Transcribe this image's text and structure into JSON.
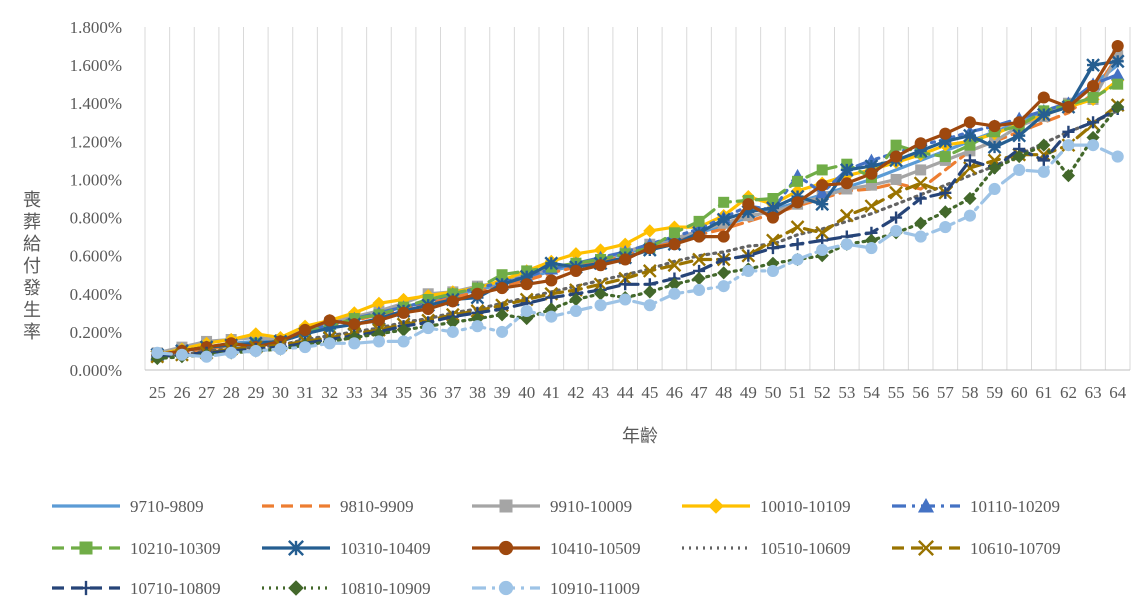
{
  "chart_data": {
    "type": "line",
    "title": "",
    "xlabel": "年齡",
    "ylabel": "喪葬給付發生率",
    "ylim": [
      0,
      0.018
    ],
    "ytick_values": [
      0,
      0.002,
      0.004,
      0.006,
      0.008,
      0.01,
      0.012,
      0.014,
      0.016,
      0.018
    ],
    "ytick_labels": [
      "0.000%",
      "0.200%",
      "0.400%",
      "0.600%",
      "0.800%",
      "1.000%",
      "1.200%",
      "1.400%",
      "1.600%",
      "1.800%"
    ],
    "grid": "vertical",
    "legend_position": "bottom",
    "categories": [
      "25",
      "26",
      "27",
      "28",
      "29",
      "30",
      "31",
      "32",
      "33",
      "34",
      "35",
      "36",
      "37",
      "38",
      "39",
      "40",
      "41",
      "42",
      "43",
      "44",
      "45",
      "46",
      "47",
      "48",
      "49",
      "50",
      "51",
      "52",
      "53",
      "54",
      "55",
      "56",
      "57",
      "58",
      "59",
      "60",
      "61",
      "62",
      "63",
      "64"
    ],
    "series": [
      {
        "name": "9710-9809",
        "color": "#5B9BD5",
        "dash": "solid",
        "marker": "none",
        "values": [
          0.0008,
          0.001,
          0.0012,
          0.0014,
          0.0015,
          0.0016,
          0.002,
          0.0024,
          0.0027,
          0.003,
          0.0033,
          0.0036,
          0.0039,
          0.0042,
          0.0045,
          0.0048,
          0.0052,
          0.0055,
          0.0058,
          0.0061,
          0.0065,
          0.0068,
          0.0072,
          0.0076,
          0.008,
          0.0084,
          0.0088,
          0.0092,
          0.0096,
          0.01,
          0.0105,
          0.011,
          0.0115,
          0.012,
          0.0125,
          0.013,
          0.0135,
          0.014,
          0.015,
          0.016
        ]
      },
      {
        "name": "9810-9909",
        "color": "#ED7D31",
        "dash": "dash",
        "marker": "none",
        "values": [
          0.0007,
          0.0009,
          0.0011,
          0.0013,
          0.0014,
          0.0016,
          0.0019,
          0.0023,
          0.0026,
          0.0029,
          0.0032,
          0.0035,
          0.0038,
          0.0041,
          0.0044,
          0.0047,
          0.0051,
          0.0054,
          0.0057,
          0.006,
          0.0064,
          0.0067,
          0.0071,
          0.0074,
          0.0078,
          0.0082,
          0.0086,
          0.009,
          0.0094,
          0.0095,
          0.0098,
          0.0095,
          0.0105,
          0.0115,
          0.012,
          0.0125,
          0.013,
          0.0135,
          0.0145,
          0.0165
        ]
      },
      {
        "name": "9910-10009",
        "color": "#A5A5A5",
        "dash": "solid",
        "marker": "square",
        "values": [
          0.0009,
          0.0012,
          0.0015,
          0.0016,
          0.0017,
          0.0016,
          0.0021,
          0.0025,
          0.0028,
          0.0031,
          0.0035,
          0.004,
          0.0041,
          0.0044,
          0.0046,
          0.005,
          0.0053,
          0.0056,
          0.0058,
          0.0062,
          0.0066,
          0.0069,
          0.0073,
          0.0077,
          0.0081,
          0.0083,
          0.0087,
          0.0091,
          0.0095,
          0.0097,
          0.01,
          0.0105,
          0.011,
          0.0115,
          0.012,
          0.0128,
          0.0133,
          0.014,
          0.0142,
          0.0165
        ]
      },
      {
        "name": "10010-10109",
        "color": "#FFC000",
        "dash": "solid",
        "marker": "diamond",
        "values": [
          0.0008,
          0.0011,
          0.0014,
          0.0016,
          0.0019,
          0.0017,
          0.0023,
          0.0026,
          0.003,
          0.0035,
          0.0037,
          0.0039,
          0.0041,
          0.0043,
          0.0047,
          0.0052,
          0.0057,
          0.0061,
          0.0063,
          0.0066,
          0.0073,
          0.0075,
          0.0075,
          0.0081,
          0.0091,
          0.0087,
          0.0094,
          0.0098,
          0.0102,
          0.0105,
          0.0109,
          0.0113,
          0.0118,
          0.012,
          0.0124,
          0.0129,
          0.0134,
          0.0138,
          0.0142,
          0.0152
        ]
      },
      {
        "name": "10110-10209",
        "color": "#4472C4",
        "dash": "dash-dot",
        "marker": "triangle",
        "values": [
          0.0008,
          0.001,
          0.0012,
          0.0013,
          0.0014,
          0.0015,
          0.002,
          0.0024,
          0.0027,
          0.003,
          0.0033,
          0.0036,
          0.004,
          0.0043,
          0.0046,
          0.0049,
          0.0053,
          0.0056,
          0.0059,
          0.0062,
          0.0066,
          0.007,
          0.0074,
          0.008,
          0.0086,
          0.0084,
          0.0102,
          0.0093,
          0.0105,
          0.011,
          0.0114,
          0.0118,
          0.0121,
          0.0125,
          0.0128,
          0.0132,
          0.0136,
          0.014,
          0.015,
          0.0155
        ]
      },
      {
        "name": "10210-10309",
        "color": "#70AD47",
        "dash": "dash",
        "marker": "square",
        "values": [
          0.0007,
          0.001,
          0.0012,
          0.0013,
          0.0014,
          0.0015,
          0.002,
          0.0023,
          0.0027,
          0.0029,
          0.0033,
          0.0037,
          0.004,
          0.0043,
          0.005,
          0.0052,
          0.0054,
          0.0056,
          0.0058,
          0.0061,
          0.0064,
          0.0072,
          0.0078,
          0.0088,
          0.0089,
          0.009,
          0.0099,
          0.0105,
          0.0108,
          0.0101,
          0.0118,
          0.0114,
          0.0112,
          0.0118,
          0.0125,
          0.0128,
          0.0136,
          0.0139,
          0.0143,
          0.015
        ]
      },
      {
        "name": "10310-10409",
        "color": "#255E91",
        "dash": "solid",
        "marker": "star",
        "values": [
          0.0008,
          0.001,
          0.0012,
          0.0013,
          0.0014,
          0.0015,
          0.0019,
          0.0022,
          0.0024,
          0.0027,
          0.0031,
          0.0034,
          0.0037,
          0.0038,
          0.0045,
          0.0049,
          0.0056,
          0.0054,
          0.0056,
          0.0059,
          0.0063,
          0.0066,
          0.0072,
          0.0079,
          0.0083,
          0.0085,
          0.0091,
          0.0087,
          0.0105,
          0.0107,
          0.011,
          0.0115,
          0.012,
          0.0123,
          0.0117,
          0.0123,
          0.0134,
          0.0138,
          0.016,
          0.0162
        ]
      },
      {
        "name": "10410-10509",
        "color": "#9E480E",
        "dash": "solid",
        "marker": "circle",
        "values": [
          0.0008,
          0.001,
          0.0012,
          0.0014,
          0.0012,
          0.0015,
          0.0021,
          0.0026,
          0.0024,
          0.0026,
          0.003,
          0.0032,
          0.0036,
          0.004,
          0.0043,
          0.0045,
          0.0047,
          0.0052,
          0.0055,
          0.0058,
          0.0064,
          0.0066,
          0.007,
          0.007,
          0.0087,
          0.008,
          0.0088,
          0.0097,
          0.0098,
          0.0103,
          0.0112,
          0.0119,
          0.0124,
          0.013,
          0.0128,
          0.013,
          0.0143,
          0.0138,
          0.0149,
          0.017
        ]
      },
      {
        "name": "10510-10609",
        "color": "#636363",
        "dash": "dot",
        "marker": "none",
        "values": [
          0.0007,
          0.0008,
          0.001,
          0.0011,
          0.0012,
          0.0013,
          0.0016,
          0.0018,
          0.002,
          0.0022,
          0.0025,
          0.0027,
          0.003,
          0.0032,
          0.0035,
          0.0038,
          0.0041,
          0.0044,
          0.0047,
          0.005,
          0.0053,
          0.0057,
          0.006,
          0.0062,
          0.0065,
          0.0066,
          0.0071,
          0.0074,
          0.0078,
          0.0082,
          0.0087,
          0.0092,
          0.0097,
          0.0102,
          0.0107,
          0.0113,
          0.0119,
          0.0125,
          0.013,
          0.0136
        ]
      },
      {
        "name": "10610-10709",
        "color": "#997300",
        "dash": "dash",
        "marker": "x",
        "values": [
          0.0007,
          0.0008,
          0.0009,
          0.0011,
          0.0012,
          0.0013,
          0.0015,
          0.0017,
          0.0019,
          0.0021,
          0.0024,
          0.0026,
          0.0029,
          0.0031,
          0.0034,
          0.0037,
          0.004,
          0.0042,
          0.0045,
          0.0048,
          0.0052,
          0.0055,
          0.0058,
          0.0058,
          0.006,
          0.0068,
          0.0075,
          0.0072,
          0.0081,
          0.0086,
          0.0093,
          0.0098,
          0.0093,
          0.0106,
          0.011,
          0.0113,
          0.0113,
          0.0118,
          0.0129,
          0.0139
        ]
      },
      {
        "name": "10710-10809",
        "color": "#264478",
        "dash": "dash",
        "marker": "plus",
        "values": [
          0.0007,
          0.0008,
          0.0009,
          0.001,
          0.0011,
          0.0012,
          0.0014,
          0.0016,
          0.0018,
          0.002,
          0.0023,
          0.0025,
          0.0028,
          0.003,
          0.0032,
          0.0035,
          0.0038,
          0.004,
          0.0042,
          0.0045,
          0.0045,
          0.0048,
          0.0052,
          0.0058,
          0.006,
          0.0064,
          0.0066,
          0.0068,
          0.007,
          0.0072,
          0.008,
          0.009,
          0.0093,
          0.011,
          0.0106,
          0.0116,
          0.011,
          0.0125,
          0.013,
          0.0137
        ]
      },
      {
        "name": "10810-10909",
        "color": "#43682B",
        "dash": "dot",
        "marker": "diamond",
        "values": [
          0.0006,
          0.0007,
          0.0008,
          0.0009,
          0.001,
          0.0011,
          0.0013,
          0.0015,
          0.0017,
          0.0019,
          0.0021,
          0.0023,
          0.0025,
          0.0027,
          0.0029,
          0.0027,
          0.0032,
          0.0037,
          0.004,
          0.0038,
          0.0041,
          0.0045,
          0.0048,
          0.0051,
          0.0053,
          0.0056,
          0.0058,
          0.006,
          0.0066,
          0.0068,
          0.0072,
          0.0077,
          0.0083,
          0.009,
          0.0106,
          0.0112,
          0.0118,
          0.0102,
          0.0122,
          0.0138
        ]
      },
      {
        "name": "10910-11009",
        "color": "#9DC3E6",
        "dash": "dash-dot",
        "marker": "circle",
        "values": [
          0.0009,
          0.0008,
          0.0007,
          0.0009,
          0.001,
          0.0011,
          0.0012,
          0.0014,
          0.0014,
          0.0015,
          0.0015,
          0.0022,
          0.002,
          0.0023,
          0.002,
          0.0031,
          0.0028,
          0.0031,
          0.0034,
          0.0037,
          0.0034,
          0.004,
          0.0042,
          0.0044,
          0.0052,
          0.0052,
          0.0058,
          0.0063,
          0.0066,
          0.0064,
          0.0073,
          0.007,
          0.0075,
          0.0081,
          0.0095,
          0.0105,
          0.0104,
          0.0118,
          0.0118,
          0.0112
        ]
      }
    ]
  }
}
